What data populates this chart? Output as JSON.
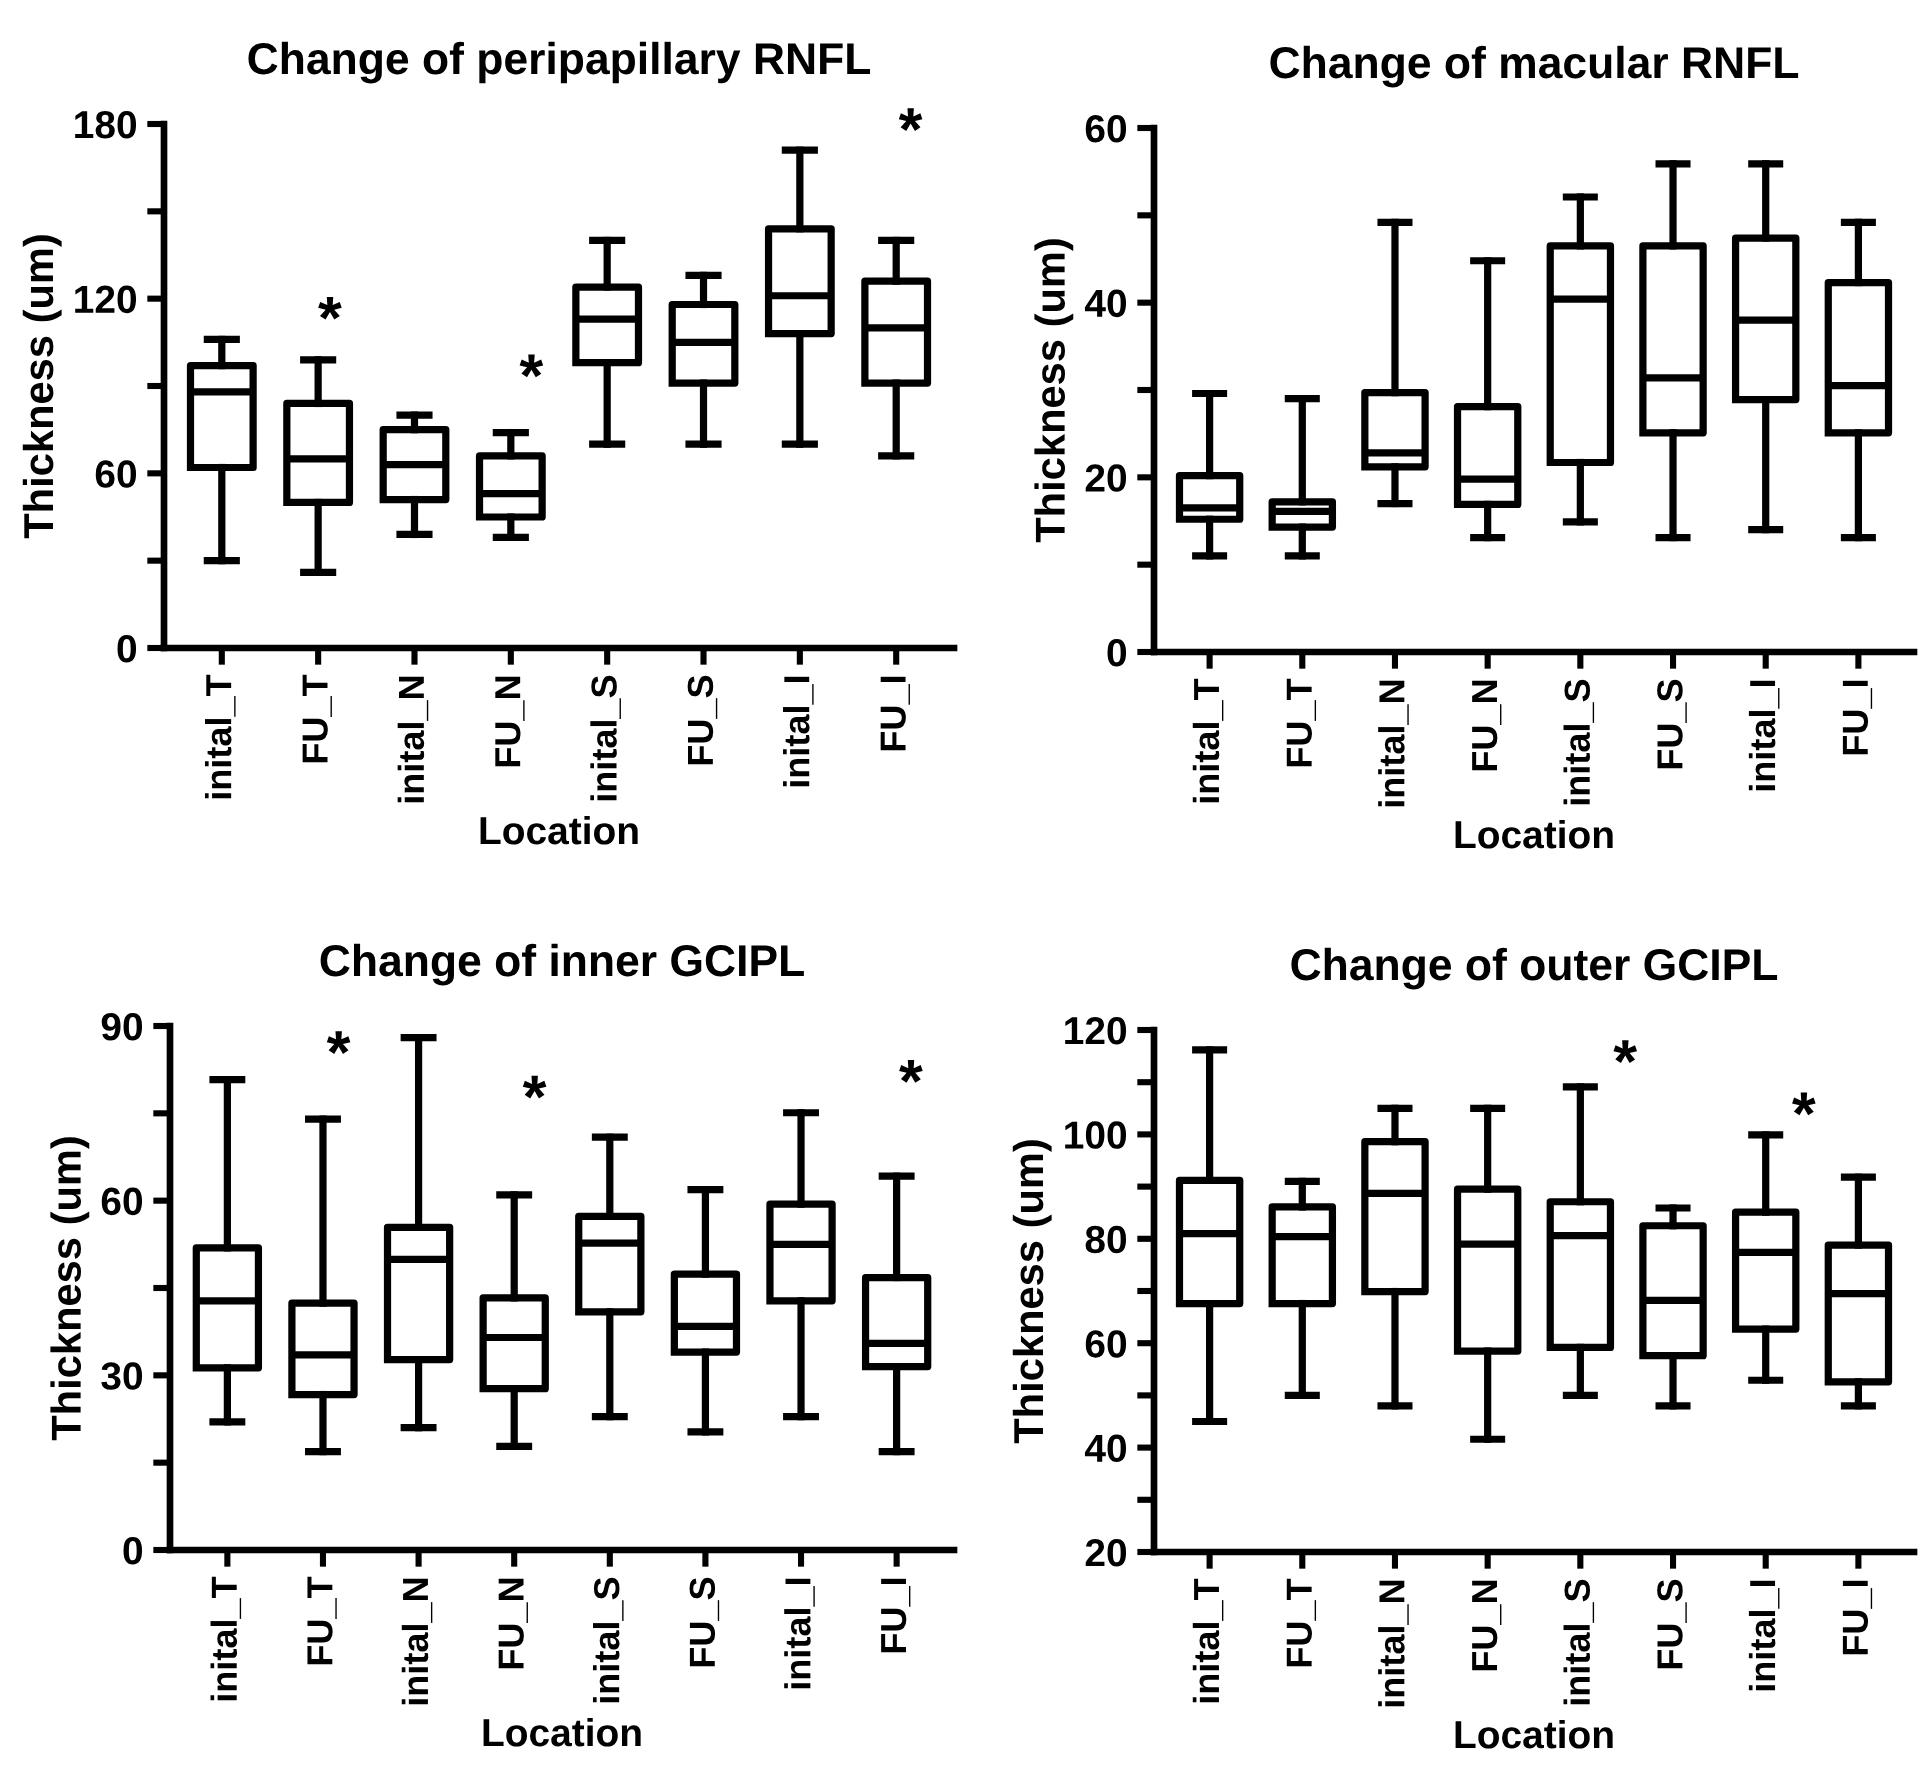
{
  "chart_data": [
    {
      "type": "box",
      "title": "Change of peripapillary RNFL",
      "xlabel": "Location",
      "ylabel": "Thickness (um)",
      "categories": [
        "inital_T",
        "FU_T",
        "inital_N",
        "FU_N",
        "inital_S",
        "FU_S",
        "inital_I",
        "FU_I"
      ],
      "ylim": [
        0,
        180
      ],
      "yticks": [
        0,
        {
          "value": 30,
          "label": null
        },
        60,
        {
          "value": 90,
          "label": null
        },
        120,
        {
          "value": 150,
          "label": null
        },
        180
      ],
      "grid": false,
      "legend": false,
      "boxes": [
        {
          "low": 30,
          "q1": 62,
          "median": 88,
          "q3": 97,
          "high": 106
        },
        {
          "low": 26,
          "q1": 50,
          "median": 65,
          "q3": 84,
          "high": 99
        },
        {
          "low": 39,
          "q1": 51,
          "median": 63,
          "q3": 75,
          "high": 80
        },
        {
          "low": 38,
          "q1": 45,
          "median": 53,
          "q3": 66,
          "high": 74
        },
        {
          "low": 70,
          "q1": 98,
          "median": 113,
          "q3": 124,
          "high": 140
        },
        {
          "low": 70,
          "q1": 91,
          "median": 105,
          "q3": 118,
          "high": 128
        },
        {
          "low": 70,
          "q1": 108,
          "median": 121,
          "q3": 144,
          "high": 171
        },
        {
          "low": 66,
          "q1": 91,
          "median": 110,
          "q3": 126,
          "high": 140
        }
      ],
      "annotations": [
        "*",
        "*",
        "*"
      ]
    },
    {
      "type": "box",
      "title": "Change of macular RNFL",
      "xlabel": "Location",
      "ylabel": "Thickness (um)",
      "categories": [
        "inital_T",
        "FU_T",
        "inital_N",
        "FU_N",
        "inital_S",
        "FU_S",
        "inital_I",
        "FU_I"
      ],
      "ylim": [
        0,
        60
      ],
      "yticks": [
        0,
        {
          "value": 10,
          "label": null
        },
        20,
        {
          "value": 30,
          "label": null
        },
        40,
        {
          "value": 50,
          "label": null
        },
        60
      ],
      "grid": false,
      "legend": false,
      "boxes": [
        {
          "low": 11,
          "q1": 15.2,
          "median": 16.5,
          "q3": 20.2,
          "high": 29.6
        },
        {
          "low": 11,
          "q1": 14.3,
          "median": 16.1,
          "q3": 17.2,
          "high": 29
        },
        {
          "low": 17,
          "q1": 21.2,
          "median": 22.8,
          "q3": 29.7,
          "high": 49.2
        },
        {
          "low": 13.1,
          "q1": 16.9,
          "median": 19.8,
          "q3": 28.1,
          "high": 44.8
        },
        {
          "low": 14.9,
          "q1": 21.7,
          "median": 40.4,
          "q3": 46.5,
          "high": 52.1
        },
        {
          "low": 13.1,
          "q1": 25.1,
          "median": 31.4,
          "q3": 46.5,
          "high": 55.9
        },
        {
          "low": 14,
          "q1": 28.9,
          "median": 38,
          "q3": 47.4,
          "high": 55.9
        },
        {
          "low": 13.1,
          "q1": 25.1,
          "median": 30.5,
          "q3": 42.3,
          "high": 49.2
        }
      ]
    },
    {
      "type": "box",
      "title": "Change of inner GCIPL",
      "xlabel": "Location",
      "ylabel": "Thickness (um)",
      "categories": [
        "inital_T",
        "FU_T",
        "inital_N",
        "FU_N",
        "inital_S",
        "FU_S",
        "inital_I",
        "FU_I"
      ],
      "ylim": [
        0,
        90
      ],
      "yticks": [
        0,
        {
          "value": 15,
          "label": null
        },
        30,
        {
          "value": 45,
          "label": null
        },
        60,
        {
          "value": 75,
          "label": null
        },
        90
      ],
      "grid": false,
      "legend": false,
      "boxes": [
        {
          "low": 22,
          "q1": 31.3,
          "median": 42.8,
          "q3": 51.9,
          "high": 80.8
        },
        {
          "low": 16.9,
          "q1": 26.7,
          "median": 33.5,
          "q3": 42.4,
          "high": 74
        },
        {
          "low": 21,
          "q1": 32.7,
          "median": 49.9,
          "q3": 55.4,
          "high": 88
        },
        {
          "low": 17.8,
          "q1": 27.7,
          "median": 36.5,
          "q3": 43.3,
          "high": 61
        },
        {
          "low": 22.9,
          "q1": 40.9,
          "median": 52.7,
          "q3": 57.3,
          "high": 70.9
        },
        {
          "low": 20.3,
          "q1": 34,
          "median": 38.4,
          "q3": 47.4,
          "high": 61.9
        },
        {
          "low": 22.9,
          "q1": 42.8,
          "median": 52.5,
          "q3": 59.4,
          "high": 75.1
        },
        {
          "low": 16.9,
          "q1": 31.5,
          "median": 35.5,
          "q3": 46.8,
          "high": 64.2
        }
      ],
      "annotations": [
        "*",
        "*",
        "*"
      ]
    },
    {
      "type": "box",
      "title": "Change of outer GCIPL",
      "xlabel": "Location",
      "ylabel": "Thickness (um)",
      "categories": [
        "inital_T",
        "FU_T",
        "inital_N",
        "FU_N",
        "inital_S",
        "FU_S",
        "inital_I",
        "FU_I"
      ],
      "ylim": [
        20,
        120
      ],
      "yticks": [
        20,
        {
          "value": 30,
          "label": null
        },
        40,
        {
          "value": 50,
          "label": null
        },
        60,
        {
          "value": 70,
          "label": null
        },
        80,
        {
          "value": 90,
          "label": null
        },
        100,
        {
          "value": 110,
          "label": null
        },
        120
      ],
      "grid": false,
      "legend": false,
      "boxes": [
        {
          "low": 45,
          "q1": 67.6,
          "median": 81,
          "q3": 91.2,
          "high": 116.2
        },
        {
          "low": 50,
          "q1": 67.6,
          "median": 80.4,
          "q3": 86.1,
          "high": 91
        },
        {
          "low": 48,
          "q1": 69.9,
          "median": 88.7,
          "q3": 98.6,
          "high": 105
        },
        {
          "low": 41.6,
          "q1": 58.5,
          "median": 79,
          "q3": 89.5,
          "high": 105
        },
        {
          "low": 50,
          "q1": 59.2,
          "median": 80.6,
          "q3": 87.1,
          "high": 109.1
        },
        {
          "low": 48,
          "q1": 57.6,
          "median": 68.2,
          "q3": 82.5,
          "high": 85.9
        },
        {
          "low": 52.9,
          "q1": 62.7,
          "median": 77.4,
          "q3": 85.1,
          "high": 99.9
        },
        {
          "low": 48,
          "q1": 52.6,
          "median": 69.5,
          "q3": 78.8,
          "high": 91.8
        }
      ],
      "annotations": [
        "*",
        "*"
      ]
    }
  ]
}
